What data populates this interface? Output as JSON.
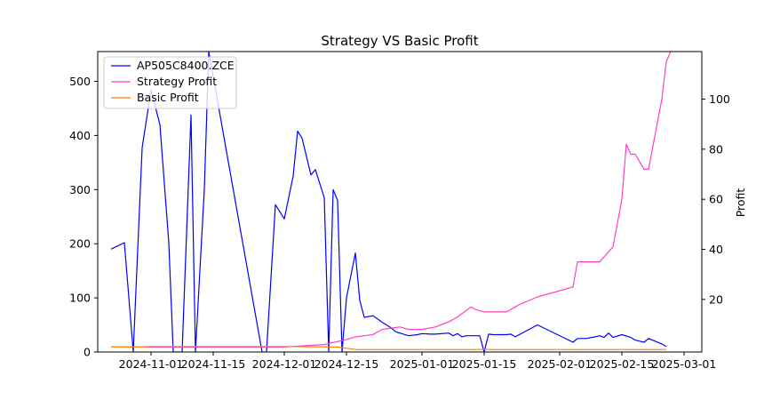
{
  "chart_data": {
    "type": "line",
    "title": "Strategy VS Basic Profit",
    "xlabel": "",
    "ylabel_left": "",
    "ylabel_right": "Profit",
    "x_range": [
      "2024-10-20",
      "2025-03-05"
    ],
    "ylim_left": [
      0,
      555
    ],
    "ylim_right": [
      -1,
      119
    ],
    "x_ticks": [
      {
        "date": "2024-11-01",
        "label": "2024-11-01"
      },
      {
        "date": "2024-11-15",
        "label": "2024-11-15"
      },
      {
        "date": "2024-12-01",
        "label": "2024-12-01"
      },
      {
        "date": "2024-12-15",
        "label": "2024-12-15"
      },
      {
        "date": "2025-01-01",
        "label": "2025-01-01"
      },
      {
        "date": "2025-01-15",
        "label": "2025-01-15"
      },
      {
        "date": "2025-02-01",
        "label": "2025-02-01"
      },
      {
        "date": "2025-02-15",
        "label": "2025-02-15"
      },
      {
        "date": "2025-03-01",
        "label": "2025-03-01"
      }
    ],
    "y_ticks_left": [
      0,
      100,
      200,
      300,
      400,
      500
    ],
    "y_ticks_right": [
      20,
      40,
      60,
      80,
      100
    ],
    "grid": false,
    "legend_position": "top-left",
    "series": [
      {
        "name": "AP505C8400.ZCE",
        "axis": "left",
        "color": "#0000ff",
        "x": [
          "2024-10-23",
          "2024-10-26",
          "2024-10-28",
          "2024-10-30",
          "2024-11-01",
          "2024-11-03",
          "2024-11-05",
          "2024-11-06",
          "2024-11-07",
          "2024-11-08",
          "2024-11-10",
          "2024-11-11",
          "2024-11-13",
          "2024-11-14",
          "2024-11-26",
          "2024-11-27",
          "2024-11-29",
          "2024-12-01",
          "2024-12-03",
          "2024-12-04",
          "2024-12-05",
          "2024-12-07",
          "2024-12-08",
          "2024-12-10",
          "2024-12-11",
          "2024-12-12",
          "2024-12-13",
          "2024-12-14",
          "2024-12-15",
          "2024-12-17",
          "2024-12-18",
          "2024-12-19",
          "2024-12-21",
          "2024-12-23",
          "2024-12-25",
          "2024-12-26",
          "2024-12-27",
          "2024-12-29",
          "2024-12-31",
          "2025-01-01",
          "2025-01-03",
          "2025-01-04",
          "2025-01-07",
          "2025-01-08",
          "2025-01-09",
          "2025-01-10",
          "2025-01-11",
          "2025-01-14",
          "2025-01-15",
          "2025-01-16",
          "2025-01-17",
          "2025-01-20",
          "2025-01-21",
          "2025-01-22",
          "2025-01-27",
          "2025-02-04",
          "2025-02-05",
          "2025-02-07",
          "2025-02-09",
          "2025-02-10",
          "2025-02-11",
          "2025-02-12",
          "2025-02-13",
          "2025-02-15",
          "2025-02-17",
          "2025-02-18",
          "2025-02-19",
          "2025-02-20",
          "2025-02-21",
          "2025-02-24",
          "2025-02-25"
        ],
        "y": [
          190,
          202,
          0,
          377,
          484,
          420,
          202,
          0,
          0,
          0,
          438,
          0,
          300,
          555,
          0,
          0,
          272,
          246,
          325,
          408,
          395,
          327,
          337,
          285,
          0,
          300,
          280,
          0,
          100,
          183,
          95,
          64,
          67,
          55,
          45,
          38,
          35,
          30,
          32,
          34,
          33,
          33,
          35,
          30,
          34,
          28,
          30,
          30,
          0,
          33,
          32,
          32,
          33,
          28,
          50,
          18,
          25,
          25,
          28,
          30,
          27,
          35,
          27,
          32,
          27,
          22,
          20,
          18,
          25,
          15,
          10
        ]
      },
      {
        "name": "Strategy Profit",
        "axis": "right",
        "color": "#ff3fbf",
        "x": [
          "2024-10-23",
          "2024-11-01",
          "2024-12-01",
          "2024-12-10",
          "2024-12-15",
          "2024-12-17",
          "2024-12-21",
          "2024-12-23",
          "2024-12-27",
          "2024-12-29",
          "2025-01-01",
          "2025-01-04",
          "2025-01-07",
          "2025-01-09",
          "2025-01-12",
          "2025-01-13",
          "2025-01-15",
          "2025-01-17",
          "2025-01-20",
          "2025-01-21",
          "2025-01-22",
          "2025-01-23",
          "2025-01-27",
          "2025-02-04",
          "2025-02-05",
          "2025-02-07",
          "2025-02-09",
          "2025-02-10",
          "2025-02-13",
          "2025-02-15",
          "2025-02-16",
          "2025-02-17",
          "2025-02-18",
          "2025-02-20",
          "2025-02-21",
          "2025-02-24",
          "2025-02-25",
          "2025-02-26"
        ],
        "y": [
          1,
          1,
          1,
          2,
          4,
          5,
          6,
          8,
          9,
          8,
          8,
          9,
          11,
          13,
          17,
          16,
          15,
          15,
          15,
          16,
          17,
          18,
          21,
          25,
          35,
          35,
          35,
          35,
          41,
          60,
          82,
          78,
          78,
          72,
          72,
          100,
          115,
          119
        ]
      },
      {
        "name": "Basic Profit",
        "axis": "right",
        "color": "#ff7f0e",
        "x": [
          "2024-10-23",
          "2024-10-30",
          "2024-11-01",
          "2024-12-01",
          "2024-12-13",
          "2024-12-15",
          "2024-12-17",
          "2025-01-15",
          "2025-02-25"
        ],
        "y": [
          1,
          1,
          1.2,
          1.2,
          1,
          0.5,
          0,
          0,
          0
        ]
      }
    ]
  }
}
